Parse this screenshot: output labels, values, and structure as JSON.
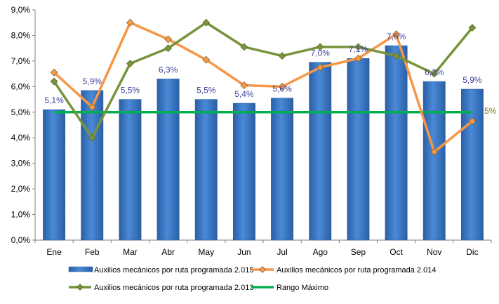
{
  "chart_data": {
    "type": "bar",
    "title": "",
    "xlabel": "",
    "ylabel": "",
    "categories": [
      "Ene",
      "Feb",
      "Mar",
      "Abr",
      "May",
      "Jun",
      "Jul",
      "Ago",
      "Sep",
      "Oct",
      "Nov",
      "Dic"
    ],
    "ylim": [
      0,
      9
    ],
    "yticks": [
      "0,0%",
      "1,0%",
      "2,0%",
      "3,0%",
      "4,0%",
      "5,0%",
      "6,0%",
      "7,0%",
      "8,0%",
      "9,0%"
    ],
    "grid": false,
    "legend_position": "bottom",
    "series": [
      {
        "name": "Auxilios mecánicos por ruta programada 2.015",
        "type": "bar",
        "color": "#3a78c9",
        "values": [
          5.1,
          5.85,
          5.5,
          6.3,
          5.5,
          5.35,
          5.55,
          6.95,
          7.1,
          7.6,
          6.2,
          5.9
        ],
        "labels": [
          "5,1%",
          "5,9%",
          "5,5%",
          "6,3%",
          "5,5%",
          "5,4%",
          "5,6%",
          "7,0%",
          "7,1%",
          "7,6%",
          "6,2%",
          "5,9%"
        ]
      },
      {
        "name": "Auxilios mecánicos por ruta programada 2.014",
        "type": "line",
        "color": "#f79646",
        "values": [
          6.55,
          5.2,
          8.5,
          7.85,
          7.05,
          6.05,
          6.0,
          6.75,
          7.1,
          8.05,
          3.45,
          4.65
        ]
      },
      {
        "name": "Auxilios mecánicos por ruta programada 2.013",
        "type": "line",
        "color": "#77933c",
        "values": [
          6.2,
          4.0,
          6.9,
          7.5,
          8.5,
          7.55,
          7.2,
          7.55,
          7.55,
          7.2,
          6.5,
          8.3
        ]
      },
      {
        "name": "Rango Máximo",
        "type": "line",
        "color": "#00b050",
        "values": [
          5,
          5,
          5,
          5,
          5,
          5,
          5,
          5,
          5,
          5,
          5,
          5
        ]
      }
    ],
    "annotations": [
      {
        "text": "5%",
        "anchor": "end of Rango Máximo line"
      }
    ]
  }
}
